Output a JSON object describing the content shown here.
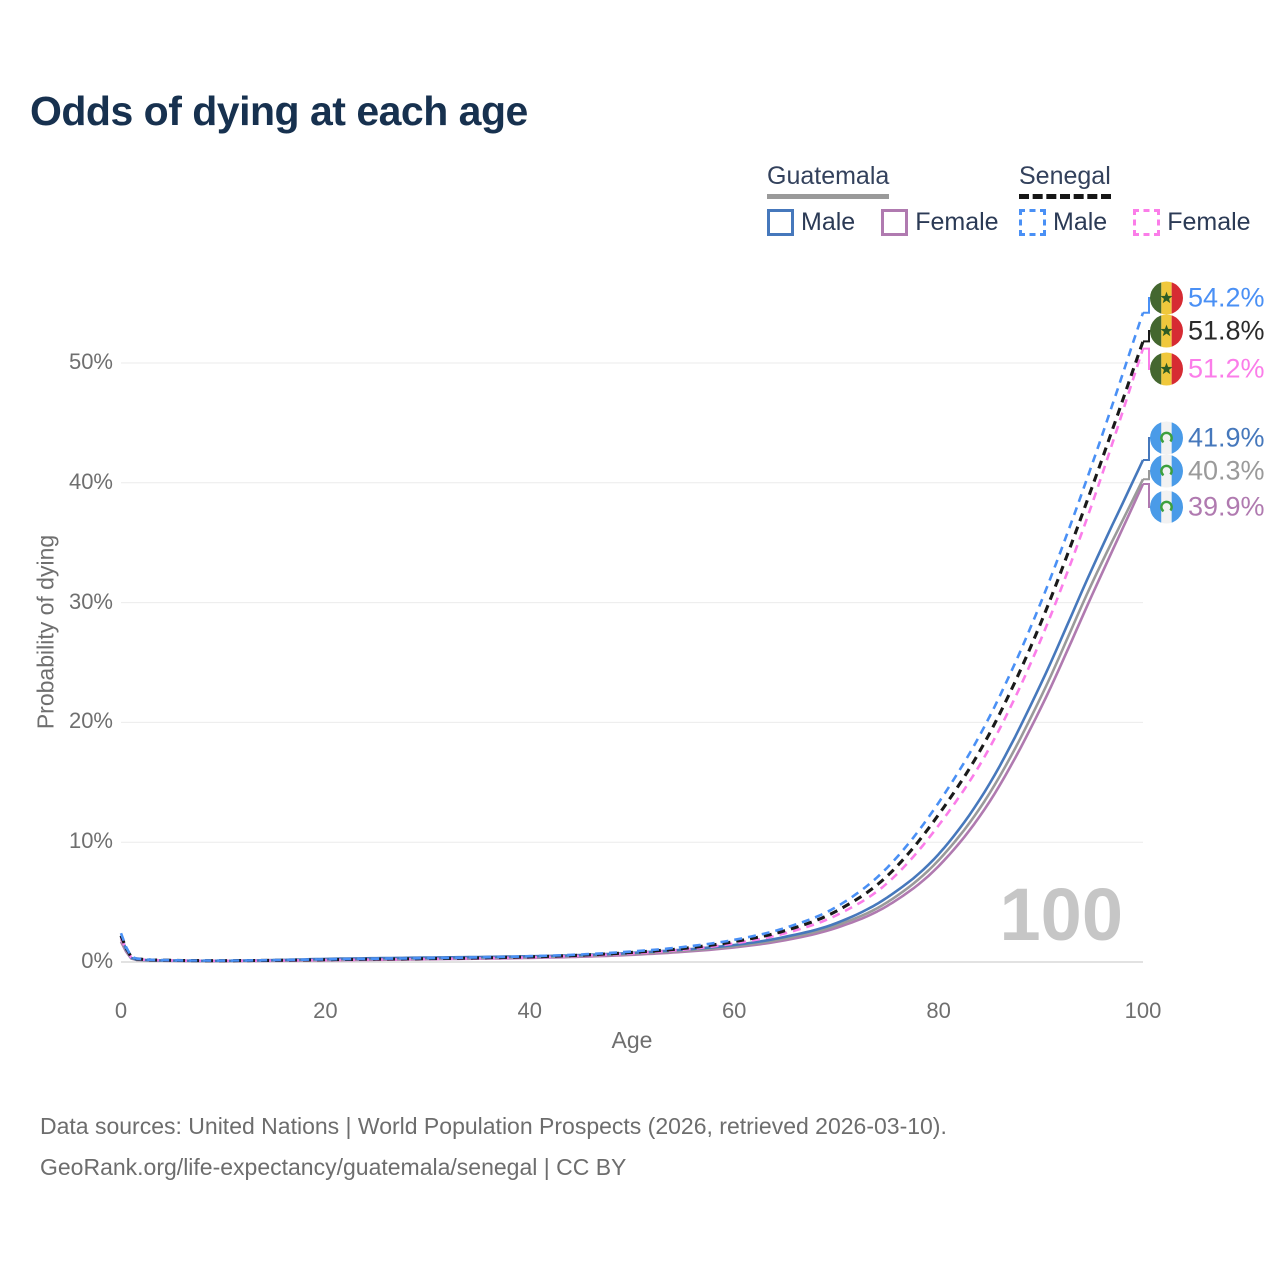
{
  "header": {
    "title": "Odds of dying at each age",
    "title_color": "#17314f"
  },
  "legend": {
    "groups": [
      {
        "country": "Guatemala",
        "line_style": "solid",
        "underline_color": "#9a9a9a",
        "items": [
          {
            "label": "Male",
            "series": "guatemala_male"
          },
          {
            "label": "Female",
            "series": "guatemala_female"
          }
        ]
      },
      {
        "country": "Senegal",
        "line_style": "dashed",
        "underline_color": "#161616",
        "items": [
          {
            "label": "Male",
            "series": "senegal_male"
          },
          {
            "label": "Female",
            "series": "senegal_female"
          }
        ]
      }
    ]
  },
  "chart_data": {
    "type": "line",
    "title": "Odds of dying at each age",
    "x": [
      0,
      1,
      2,
      5,
      10,
      15,
      20,
      25,
      30,
      35,
      40,
      45,
      50,
      55,
      60,
      65,
      70,
      75,
      80,
      85,
      90,
      95,
      100
    ],
    "series": [
      {
        "id": "senegal_male",
        "name": "Senegal Male",
        "color": "#4a90f5",
        "dash": "dashed",
        "flag": "senegal",
        "end_label": "54.2%",
        "values": [
          2.4,
          0.45,
          0.25,
          0.15,
          0.12,
          0.16,
          0.22,
          0.27,
          0.32,
          0.38,
          0.48,
          0.63,
          0.88,
          1.25,
          1.85,
          2.85,
          4.6,
          7.9,
          13.3,
          20.5,
          30.0,
          41.5,
          54.2
        ]
      },
      {
        "id": "senegal_both",
        "name": "Senegal",
        "color": "#1a1a1a",
        "label_color": "#2b2b2b",
        "dash": "dashed",
        "flag": "senegal",
        "end_label": "51.8%",
        "values": [
          2.2,
          0.42,
          0.23,
          0.14,
          0.11,
          0.14,
          0.19,
          0.24,
          0.28,
          0.34,
          0.43,
          0.57,
          0.8,
          1.13,
          1.7,
          2.62,
          4.25,
          7.2,
          12.3,
          19.1,
          28.3,
          39.6,
          51.8
        ]
      },
      {
        "id": "senegal_female",
        "name": "Senegal Female",
        "color": "#fb7de9",
        "dash": "dashed",
        "flag": "senegal",
        "end_label": "51.2%",
        "values": [
          2.0,
          0.38,
          0.21,
          0.13,
          0.1,
          0.12,
          0.16,
          0.2,
          0.25,
          0.3,
          0.39,
          0.52,
          0.72,
          1.03,
          1.55,
          2.4,
          3.9,
          6.6,
          11.4,
          17.9,
          26.9,
          38.2,
          51.2
        ]
      },
      {
        "id": "guatemala_male",
        "name": "Guatemala Male",
        "color": "#4678bc",
        "dash": "solid",
        "flag": "guatemala",
        "end_label": "41.9%",
        "values": [
          2.1,
          0.35,
          0.18,
          0.12,
          0.1,
          0.16,
          0.26,
          0.32,
          0.37,
          0.42,
          0.48,
          0.58,
          0.76,
          1.03,
          1.42,
          2.1,
          3.25,
          5.4,
          9.0,
          14.9,
          23.2,
          32.8,
          41.9
        ]
      },
      {
        "id": "guatemala_both",
        "name": "Guatemala",
        "color": "#9a9a9a",
        "dash": "solid",
        "flag": "guatemala",
        "end_label": "40.3%",
        "values": [
          1.9,
          0.32,
          0.16,
          0.11,
          0.09,
          0.13,
          0.21,
          0.26,
          0.3,
          0.35,
          0.41,
          0.51,
          0.68,
          0.94,
          1.32,
          1.96,
          3.05,
          5.0,
          8.5,
          14.1,
          22.1,
          31.6,
          40.3
        ]
      },
      {
        "id": "guatemala_female",
        "name": "Guatemala Female",
        "color": "#b07ab0",
        "dash": "solid",
        "flag": "guatemala",
        "end_label": "39.9%",
        "values": [
          1.7,
          0.29,
          0.15,
          0.1,
          0.08,
          0.1,
          0.14,
          0.18,
          0.23,
          0.28,
          0.34,
          0.44,
          0.6,
          0.85,
          1.22,
          1.82,
          2.85,
          4.7,
          8.0,
          13.4,
          21.2,
          30.6,
          39.9
        ]
      }
    ],
    "x_axis": {
      "title": "Age",
      "ticks": [
        0,
        20,
        40,
        60,
        80,
        100
      ]
    },
    "y_axis": {
      "title": "Probability of dying",
      "ticks": [
        0,
        10,
        20,
        30,
        40,
        50
      ],
      "tick_suffix": "%"
    },
    "xlim": [
      0,
      100
    ],
    "ylim": [
      0,
      56
    ],
    "grid": true,
    "legend_position": "top-right",
    "watermark": "100",
    "gridline_color": "#ebebeb",
    "baseline_color": "#d9d9d9"
  },
  "flags": {
    "senegal": {
      "green": "#44672f",
      "yellow": "#f0c83c",
      "red": "#d62b33",
      "star": "#2f5d25"
    },
    "guatemala": {
      "blue": "#4a9be8",
      "white": "#f2f2f2",
      "emblem": "#3da03d"
    }
  },
  "footer": {
    "line1": "Data sources: United Nations | World Population Prospects (2026, retrieved 2026-03-10).",
    "line2": "GeoRank.org/life-expectancy/guatemala/senegal | CC BY"
  }
}
